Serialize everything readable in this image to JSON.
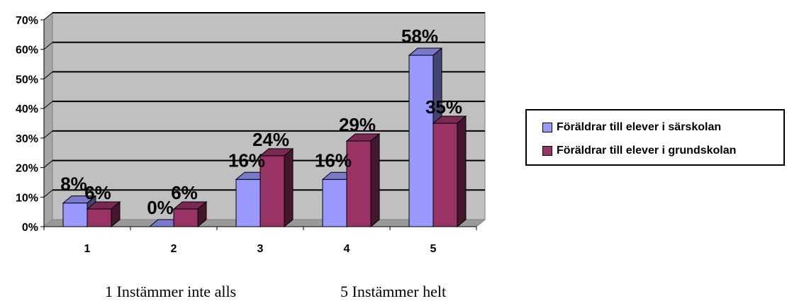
{
  "chart_data": {
    "type": "bar",
    "categories": [
      "1",
      "2",
      "3",
      "4",
      "5"
    ],
    "series": [
      {
        "name": "Föräldrar till elever i särskolan",
        "color": "#9999ff",
        "values": [
          8,
          0,
          16,
          16,
          58
        ],
        "labels": [
          "8%",
          "0%",
          "16%",
          "16%",
          "58%"
        ]
      },
      {
        "name": "Föräldrar till elever i grundskolan",
        "color": "#993366",
        "values": [
          6,
          6,
          24,
          29,
          35
        ],
        "labels": [
          "6%",
          "6%",
          "24%",
          "29%",
          "35%"
        ]
      }
    ],
    "ylim": [
      0,
      70
    ],
    "yticks": [
      "0%",
      "10%",
      "20%",
      "30%",
      "40%",
      "50%",
      "60%",
      "70%"
    ],
    "grid": true,
    "legend_position": "right",
    "title": "",
    "xlabel": "",
    "ylabel": ""
  },
  "legend": {
    "item1": "Föräldrar till elever i särskolan",
    "item2": "Föräldrar till elever i grundskolan"
  },
  "notes": {
    "left": "1 Instämmer inte alls",
    "right": "5 Instämmer helt"
  }
}
